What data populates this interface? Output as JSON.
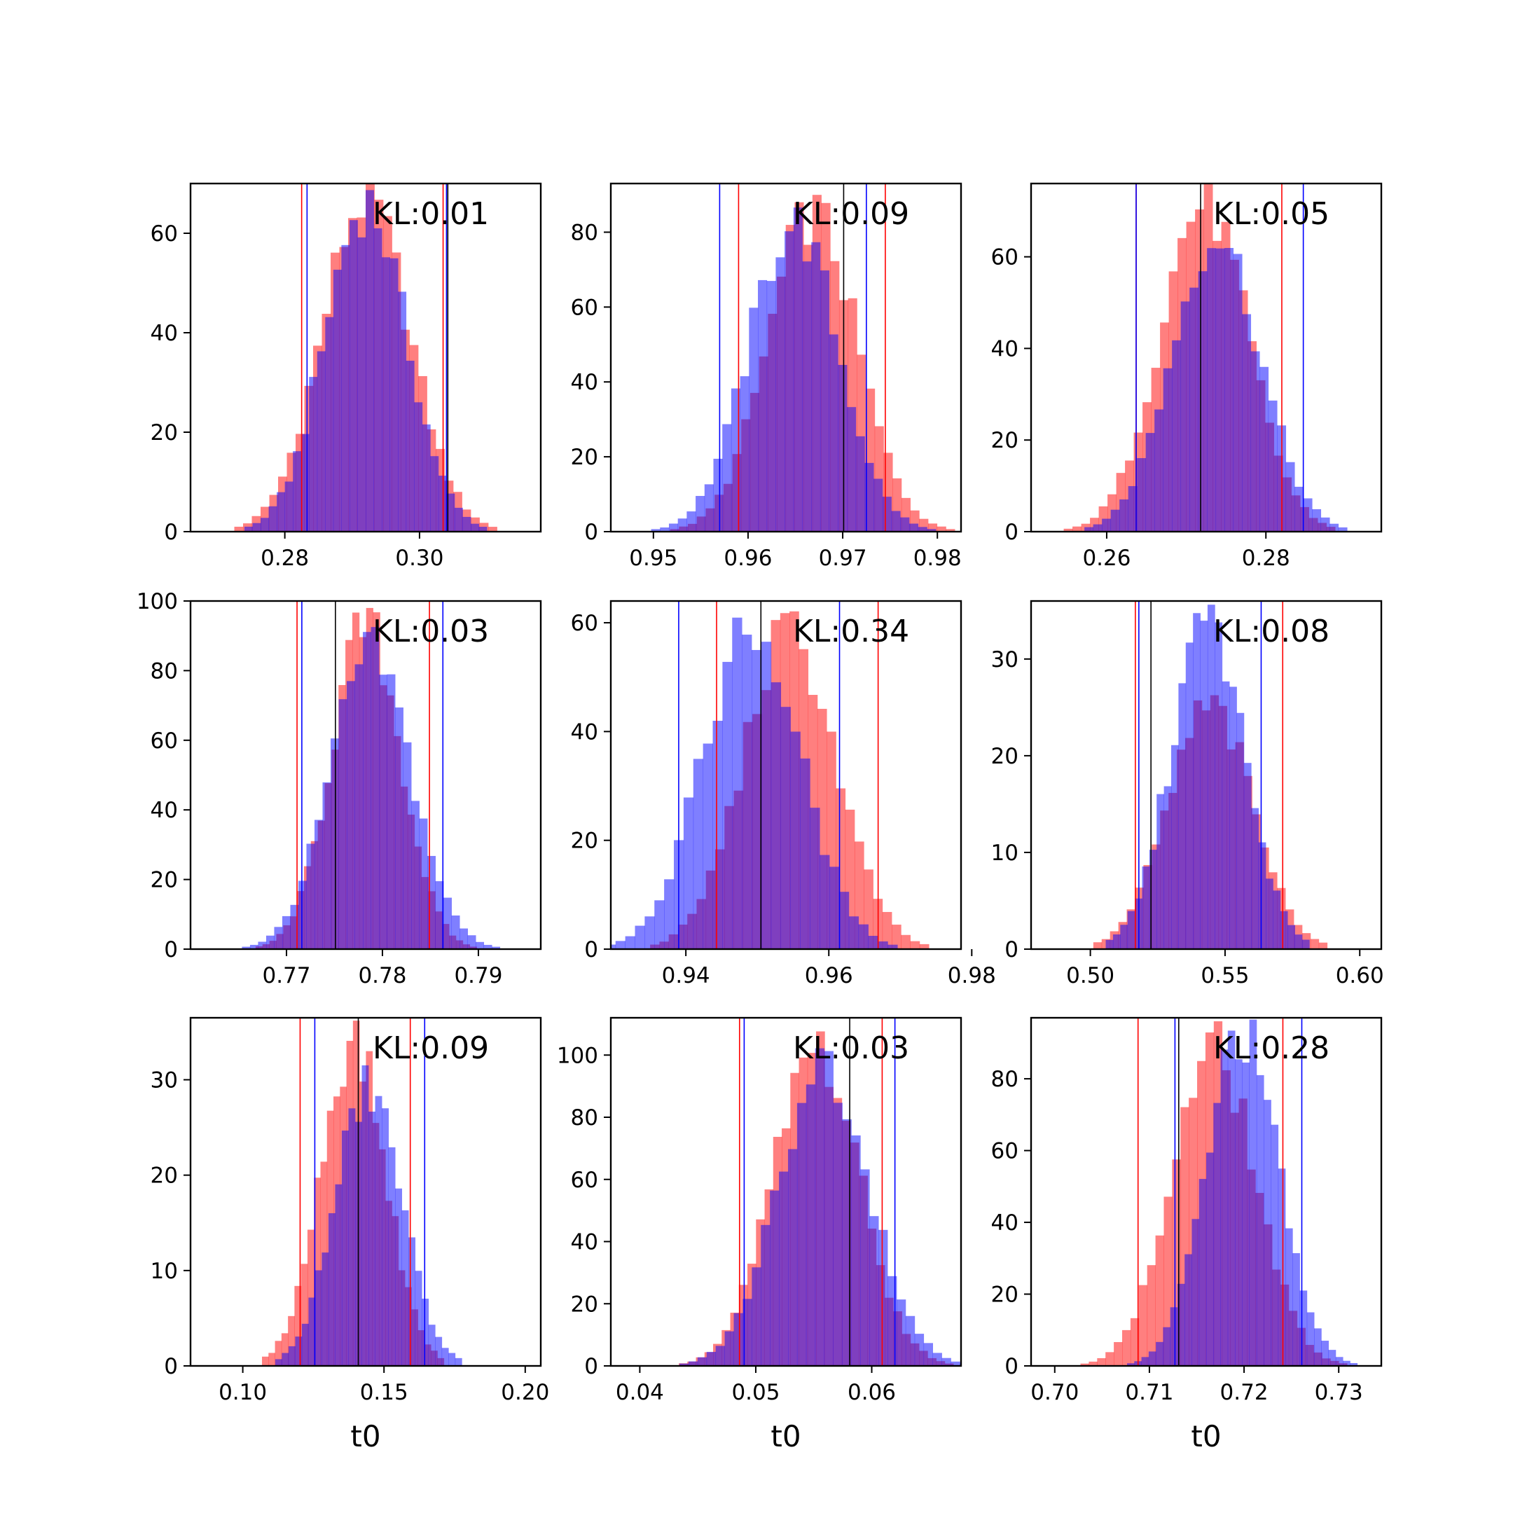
{
  "chart_data": [
    {
      "type": "bar",
      "kl_label": "KL:0.01",
      "xlabel": "",
      "xlim": [
        0.266,
        0.318
      ],
      "ylim": [
        0,
        70
      ],
      "xticks": [
        "0.28",
        "0.30"
      ],
      "yticks": [
        "0",
        "20",
        "40",
        "60"
      ],
      "red_mean": 0.292,
      "red_std": 0.0065,
      "red_peak": 67,
      "blue_mean": 0.292,
      "blue_std": 0.006,
      "blue_peak": 66,
      "bins": 34,
      "red_lines": [
        0.2825,
        0.3035
      ],
      "blue_lines": [
        0.2833,
        0.304
      ],
      "black_lines": [
        0.3042
      ]
    },
    {
      "type": "bar",
      "kl_label": "KL:0.09",
      "xlabel": "",
      "xlim": [
        0.9455,
        0.9825
      ],
      "ylim": [
        0,
        93
      ],
      "xticks": [
        "0.95",
        "0.96",
        "0.97",
        "0.98"
      ],
      "yticks": [
        "0",
        "20",
        "40",
        "60",
        "80"
      ],
      "red_mean": 0.9668,
      "red_std": 0.0047,
      "red_peak": 85,
      "blue_mean": 0.9648,
      "blue_std": 0.0047,
      "blue_peak": 82,
      "bins": 34,
      "red_lines": [
        0.959,
        0.9745
      ],
      "blue_lines": [
        0.957,
        0.9725
      ],
      "black_lines": [
        0.9701
      ]
    },
    {
      "type": "bar",
      "kl_label": "KL:0.05",
      "xlabel": "",
      "xlim": [
        0.2505,
        0.2945
      ],
      "ylim": [
        0,
        76
      ],
      "xticks": [
        "0.26",
        "0.28"
      ],
      "yticks": [
        "0",
        "20",
        "40",
        "60"
      ],
      "red_mean": 0.2722,
      "red_std": 0.0055,
      "red_peak": 72,
      "blue_mean": 0.2737,
      "blue_std": 0.0055,
      "blue_peak": 65,
      "bins": 34,
      "red_lines": [
        0.2637,
        0.282
      ],
      "blue_lines": [
        0.2637,
        0.2847
      ],
      "black_lines": [
        0.2718
      ]
    },
    {
      "type": "bar",
      "kl_label": "KL:0.03",
      "xlabel": "",
      "xlim": [
        0.76,
        0.7965
      ],
      "ylim": [
        0,
        100
      ],
      "xticks": [
        "0.77",
        "0.78",
        "0.79"
      ],
      "yticks": [
        "0",
        "20",
        "40",
        "60",
        "80",
        "100"
      ],
      "red_mean": 0.7783,
      "red_std": 0.0036,
      "red_peak": 93,
      "blue_mean": 0.7788,
      "blue_std": 0.0042,
      "blue_peak": 85,
      "bins": 34,
      "red_lines": [
        0.7711,
        0.7849
      ],
      "blue_lines": [
        0.7716,
        0.7863
      ],
      "black_lines": [
        0.7751
      ]
    },
    {
      "type": "bar",
      "kl_label": "KL:0.34",
      "xlabel": "",
      "xlim": [
        0.9295,
        0.9785
      ],
      "ylim": [
        0,
        64
      ],
      "xticks": [
        "0.94",
        "0.96",
        "0.98"
      ],
      "yticks": [
        "0",
        "20",
        "40",
        "60"
      ],
      "red_mean": 0.9545,
      "red_std": 0.0065,
      "red_peak": 58,
      "blue_mean": 0.9492,
      "blue_std": 0.0068,
      "blue_peak": 59,
      "bins": 34,
      "red_lines": [
        0.9443,
        0.9669
      ],
      "blue_lines": [
        0.939,
        0.9615
      ],
      "black_lines": [
        0.9505
      ]
    },
    {
      "type": "bar",
      "kl_label": "KL:0.08",
      "xlabel": "",
      "xlim": [
        0.478,
        0.608
      ],
      "ylim": [
        0,
        36
      ],
      "xticks": [
        "0.50",
        "0.55",
        "0.60"
      ],
      "yticks": [
        "0",
        "10",
        "20",
        "30"
      ],
      "red_mean": 0.5445,
      "red_std": 0.0155,
      "red_peak": 25,
      "blue_mean": 0.5435,
      "blue_std": 0.0135,
      "blue_peak": 34,
      "bins": 34,
      "red_lines": [
        0.5167,
        0.5714
      ],
      "blue_lines": [
        0.518,
        0.5634
      ],
      "black_lines": [
        0.5225
      ]
    },
    {
      "type": "bar",
      "kl_label": "KL:0.09",
      "xlabel": "t0",
      "xlim": [
        0.0815,
        0.2055
      ],
      "ylim": [
        0,
        36.5
      ],
      "xticks": [
        "0.10",
        "0.15",
        "0.20"
      ],
      "yticks": [
        "0",
        "10",
        "20",
        "30"
      ],
      "red_mean": 0.139,
      "red_std": 0.0115,
      "red_peak": 34,
      "blue_mean": 0.1445,
      "blue_std": 0.0118,
      "blue_peak": 29,
      "bins": 34,
      "red_lines": [
        0.1203,
        0.1593
      ],
      "blue_lines": [
        0.1255,
        0.1644
      ],
      "black_lines": [
        0.1409
      ]
    },
    {
      "type": "bar",
      "kl_label": "KL:0.03",
      "xlabel": "t0",
      "xlim": [
        0.0375,
        0.0677
      ],
      "ylim": [
        0,
        112
      ],
      "xticks": [
        "0.04",
        "0.05",
        "0.06"
      ],
      "yticks": [
        "0",
        "20",
        "40",
        "60",
        "80",
        "100"
      ],
      "red_mean": 0.0552,
      "red_std": 0.0037,
      "red_peak": 102,
      "blue_mean": 0.0559,
      "blue_std": 0.0039,
      "blue_peak": 98,
      "bins": 34,
      "red_lines": [
        0.0486,
        0.0609
      ],
      "blue_lines": [
        0.049,
        0.062
      ],
      "black_lines": [
        0.0581
      ]
    },
    {
      "type": "bar",
      "kl_label": "KL:0.28",
      "xlabel": "t0",
      "xlim": [
        0.6975,
        0.7345
      ],
      "ylim": [
        0,
        97
      ],
      "xticks": [
        "0.70",
        "0.71",
        "0.72",
        "0.73"
      ],
      "yticks": [
        "0",
        "20",
        "40",
        "60",
        "80"
      ],
      "red_mean": 0.7168,
      "red_std": 0.0044,
      "red_peak": 88,
      "blue_mean": 0.7198,
      "blue_std": 0.0038,
      "blue_peak": 93,
      "bins": 34,
      "red_lines": [
        0.7088,
        0.7241
      ],
      "blue_lines": [
        0.7127,
        0.7261
      ],
      "black_lines": [
        0.7131
      ]
    }
  ],
  "colors": {
    "red": "#ff0000",
    "blue": "#0000ff",
    "black": "#000000",
    "overlap": "#8040c0"
  }
}
